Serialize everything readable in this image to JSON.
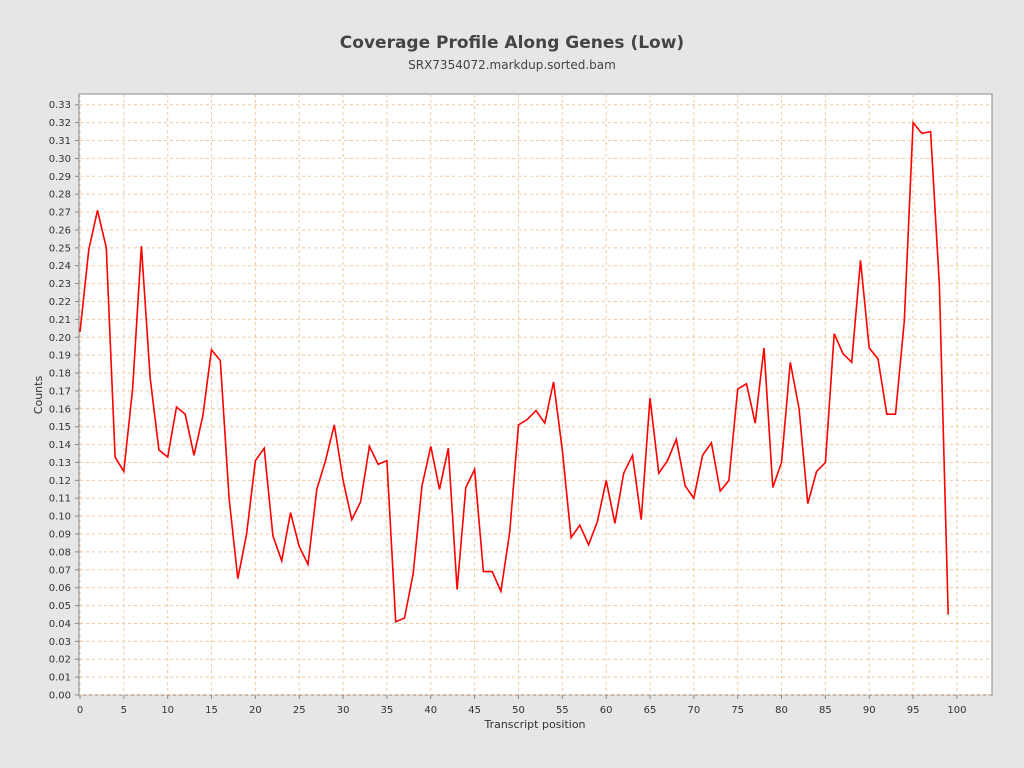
{
  "chart_data": {
    "type": "line",
    "title": "Coverage Profile Along Genes (Low)",
    "subtitle": "SRX7354072.markdup.sorted.bam",
    "xlabel": "Transcript position",
    "ylabel": "Counts",
    "xlim": [
      0,
      104
    ],
    "ylim": [
      0,
      0.336
    ],
    "grid": true,
    "x_ticks": [
      "0",
      "5",
      "10",
      "15",
      "20",
      "25",
      "30",
      "35",
      "40",
      "45",
      "50",
      "55",
      "60",
      "65",
      "70",
      "75",
      "80",
      "85",
      "90",
      "95",
      "100"
    ],
    "y_ticks": [
      "0.00",
      "0.01",
      "0.02",
      "0.03",
      "0.04",
      "0.05",
      "0.06",
      "0.07",
      "0.08",
      "0.09",
      "0.10",
      "0.11",
      "0.12",
      "0.13",
      "0.14",
      "0.15",
      "0.16",
      "0.17",
      "0.18",
      "0.19",
      "0.20",
      "0.21",
      "0.22",
      "0.23",
      "0.24",
      "0.25",
      "0.26",
      "0.27",
      "0.28",
      "0.29",
      "0.30",
      "0.31",
      "0.32",
      "0.33"
    ],
    "series": [
      {
        "name": "Low",
        "color": "#ff0000",
        "values": [
          0.203,
          0.249,
          0.271,
          0.25,
          0.133,
          0.125,
          0.171,
          0.251,
          0.177,
          0.137,
          0.133,
          0.161,
          0.157,
          0.134,
          0.156,
          0.193,
          0.187,
          0.11,
          0.065,
          0.09,
          0.131,
          0.138,
          0.089,
          0.075,
          0.102,
          0.083,
          0.073,
          0.115,
          0.131,
          0.151,
          0.12,
          0.098,
          0.108,
          0.139,
          0.129,
          0.131,
          0.041,
          0.043,
          0.068,
          0.117,
          0.139,
          0.115,
          0.138,
          0.059,
          0.116,
          0.126,
          0.069,
          0.069,
          0.058,
          0.091,
          0.151,
          0.154,
          0.159,
          0.152,
          0.175,
          0.137,
          0.088,
          0.095,
          0.084,
          0.097,
          0.12,
          0.096,
          0.124,
          0.134,
          0.098,
          0.166,
          0.124,
          0.131,
          0.143,
          0.117,
          0.11,
          0.134,
          0.141,
          0.114,
          0.12,
          0.171,
          0.174,
          0.152,
          0.194,
          0.116,
          0.13,
          0.186,
          0.16,
          0.107,
          0.125,
          0.13,
          0.202,
          0.191,
          0.186,
          0.243,
          0.194,
          0.188,
          0.157,
          0.157,
          0.209,
          0.32,
          0.314,
          0.315,
          0.229,
          0.045
        ]
      }
    ]
  }
}
